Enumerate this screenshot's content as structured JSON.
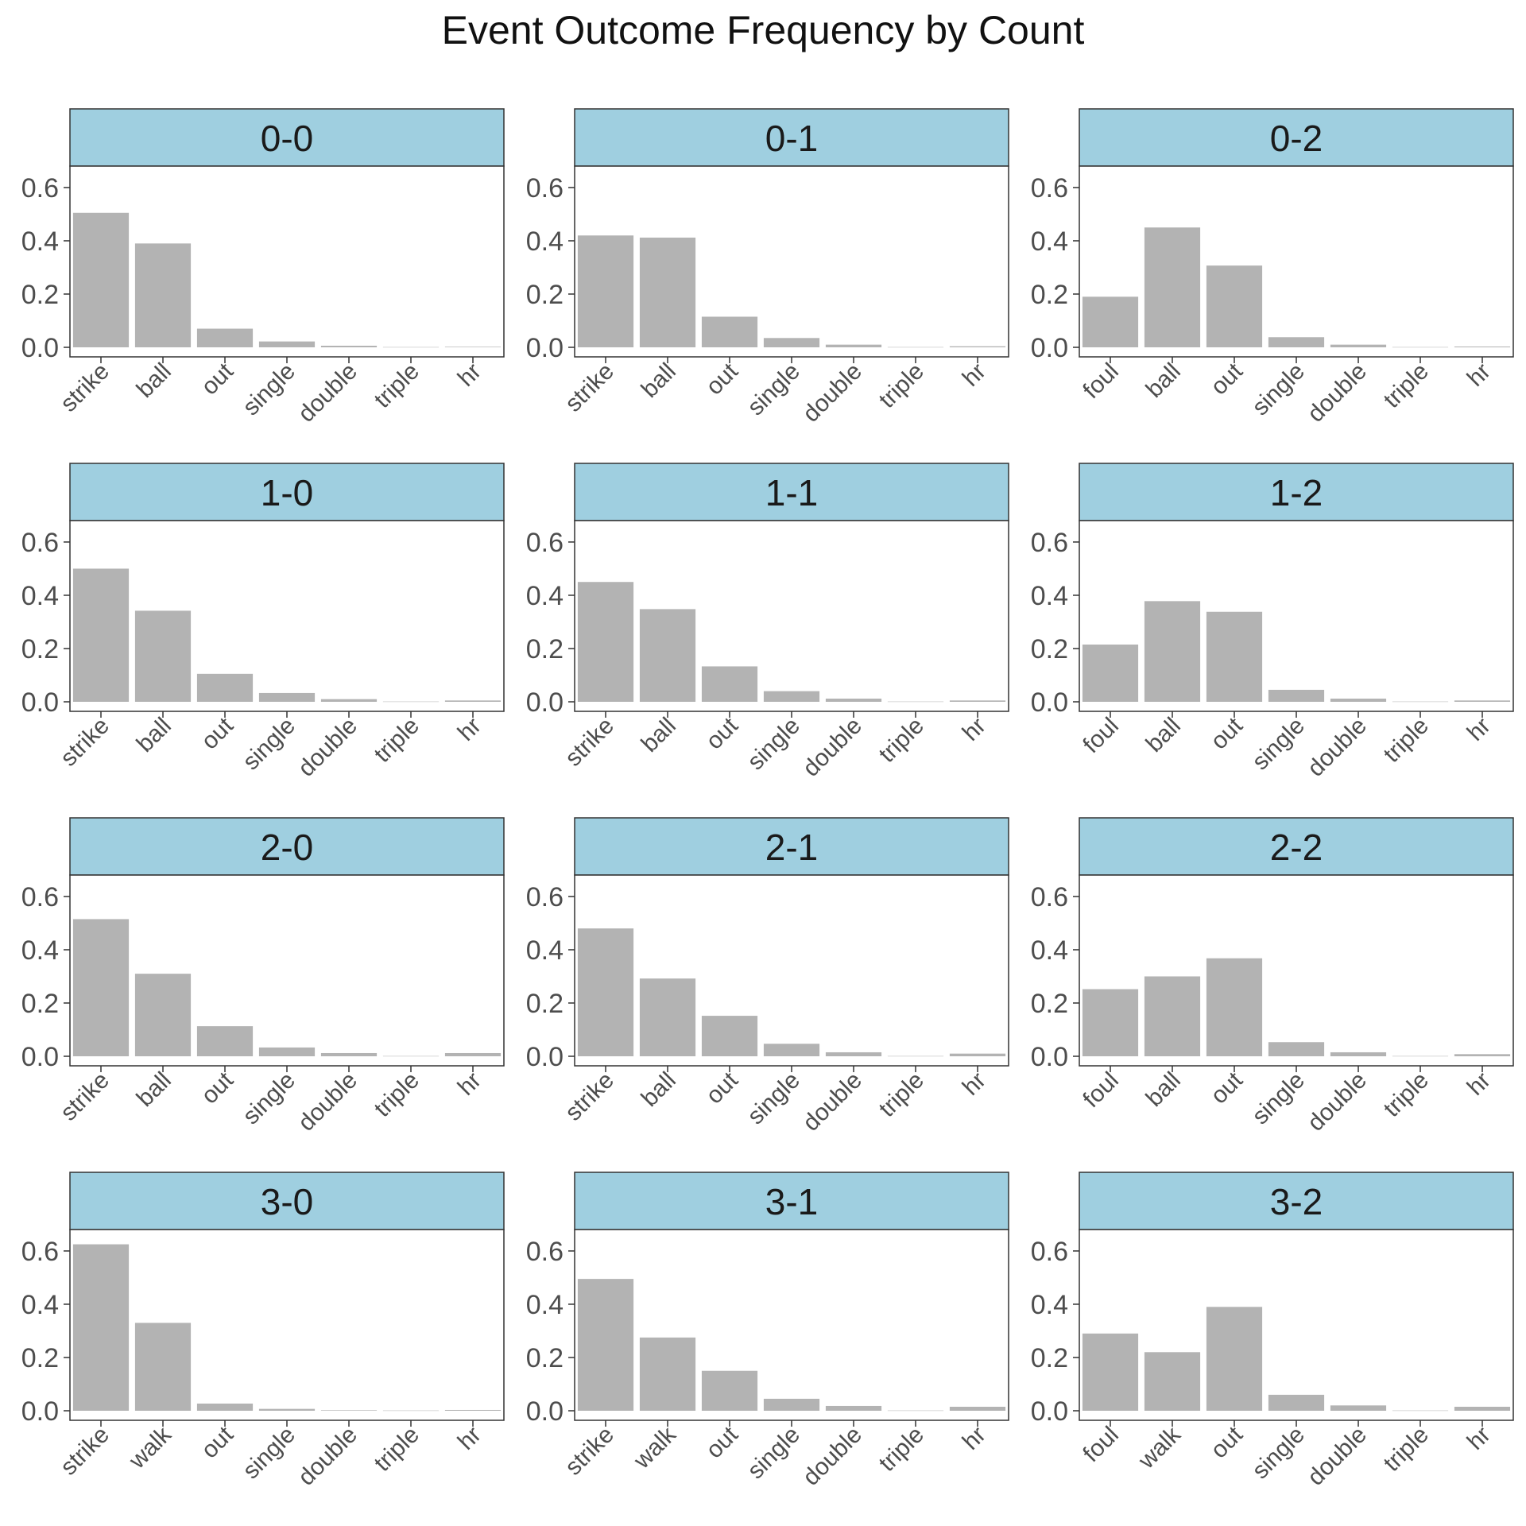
{
  "chart_data": {
    "type": "bar",
    "title": "Event Outcome Frequency by Count",
    "xlabel": "",
    "ylabel": "",
    "ylim": [
      0,
      0.65
    ],
    "yticks": [
      "0.0",
      "0.2",
      "0.4",
      "0.6"
    ],
    "grid": false,
    "colors": {
      "bar": "#b3b3b3",
      "strip": "#9fcfe0",
      "border": "#333333",
      "text": "#4d4d4d"
    },
    "panels": [
      {
        "label": "0-0",
        "categories": [
          "strike",
          "ball",
          "out",
          "single",
          "double",
          "triple",
          "hr"
        ],
        "values": [
          0.505,
          0.39,
          0.07,
          0.022,
          0.006,
          0.001,
          0.002
        ]
      },
      {
        "label": "0-1",
        "categories": [
          "strike",
          "ball",
          "out",
          "single",
          "double",
          "triple",
          "hr"
        ],
        "values": [
          0.42,
          0.412,
          0.115,
          0.035,
          0.01,
          0.001,
          0.004
        ]
      },
      {
        "label": "0-2",
        "categories": [
          "foul",
          "ball",
          "out",
          "single",
          "double",
          "triple",
          "hr"
        ],
        "values": [
          0.19,
          0.45,
          0.307,
          0.038,
          0.01,
          0.001,
          0.003
        ]
      },
      {
        "label": "1-0",
        "categories": [
          "strike",
          "ball",
          "out",
          "single",
          "double",
          "triple",
          "hr"
        ],
        "values": [
          0.5,
          0.342,
          0.105,
          0.033,
          0.01,
          0.001,
          0.005
        ]
      },
      {
        "label": "1-1",
        "categories": [
          "strike",
          "ball",
          "out",
          "single",
          "double",
          "triple",
          "hr"
        ],
        "values": [
          0.45,
          0.348,
          0.133,
          0.04,
          0.012,
          0.001,
          0.005
        ]
      },
      {
        "label": "1-2",
        "categories": [
          "foul",
          "ball",
          "out",
          "single",
          "double",
          "triple",
          "hr"
        ],
        "values": [
          0.215,
          0.378,
          0.338,
          0.045,
          0.012,
          0.001,
          0.005
        ]
      },
      {
        "label": "2-0",
        "categories": [
          "strike",
          "ball",
          "out",
          "single",
          "double",
          "triple",
          "hr"
        ],
        "values": [
          0.515,
          0.31,
          0.113,
          0.033,
          0.012,
          0.001,
          0.012
        ]
      },
      {
        "label": "2-1",
        "categories": [
          "strike",
          "ball",
          "out",
          "single",
          "double",
          "triple",
          "hr"
        ],
        "values": [
          0.48,
          0.292,
          0.152,
          0.047,
          0.015,
          0.001,
          0.01
        ]
      },
      {
        "label": "2-2",
        "categories": [
          "foul",
          "ball",
          "out",
          "single",
          "double",
          "triple",
          "hr"
        ],
        "values": [
          0.252,
          0.3,
          0.368,
          0.053,
          0.015,
          0.001,
          0.008
        ]
      },
      {
        "label": "3-0",
        "categories": [
          "strike",
          "walk",
          "out",
          "single",
          "double",
          "triple",
          "hr"
        ],
        "values": [
          0.625,
          0.33,
          0.027,
          0.007,
          0.002,
          0.001,
          0.003
        ]
      },
      {
        "label": "3-1",
        "categories": [
          "strike",
          "walk",
          "out",
          "single",
          "double",
          "triple",
          "hr"
        ],
        "values": [
          0.495,
          0.275,
          0.15,
          0.045,
          0.018,
          0.001,
          0.015
        ]
      },
      {
        "label": "3-2",
        "categories": [
          "foul",
          "walk",
          "out",
          "single",
          "double",
          "triple",
          "hr"
        ],
        "values": [
          0.29,
          0.22,
          0.39,
          0.06,
          0.02,
          0.001,
          0.015
        ]
      }
    ]
  }
}
